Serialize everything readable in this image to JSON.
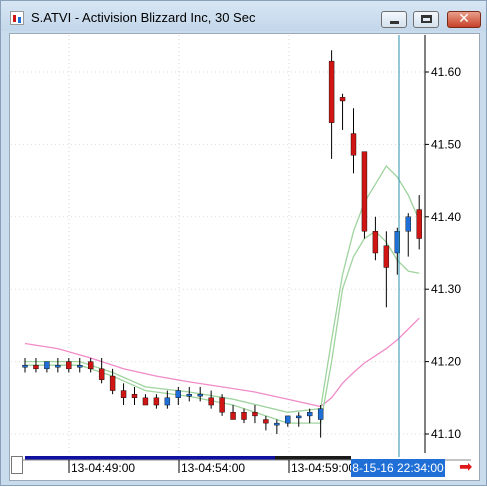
{
  "window": {
    "title": "S.ATVI - Activision Blizzard Inc, 30 Sec",
    "icon": "candlestick-chart-icon",
    "close_glyph": "✕"
  },
  "chart_data": {
    "type": "candlestick",
    "ylim": [
      41.05,
      41.66
    ],
    "y_ticks": [
      "41.60",
      "41.50",
      "41.40",
      "41.30",
      "41.20",
      "41.10"
    ],
    "x_tick_labels": [
      "13-04:49:00",
      "13-04:54:00",
      "13-04:59:00"
    ],
    "cursor_time": "8-15-16 22:34:00",
    "colors": {
      "up": "#1f6fd6",
      "down": "#d01515",
      "ma_fast": "#9fd39f",
      "ma_slow": "#f08cc8",
      "cursor": "#2a8fb0"
    },
    "candles": [
      {
        "o": 41.195,
        "h": 41.205,
        "l": 41.185,
        "c": 41.195
      },
      {
        "o": 41.195,
        "h": 41.205,
        "l": 41.185,
        "c": 41.19
      },
      {
        "o": 41.19,
        "h": 41.2,
        "l": 41.185,
        "c": 41.2
      },
      {
        "o": 41.195,
        "h": 41.205,
        "l": 41.185,
        "c": 41.195
      },
      {
        "o": 41.2,
        "h": 41.205,
        "l": 41.185,
        "c": 41.19
      },
      {
        "o": 41.195,
        "h": 41.205,
        "l": 41.185,
        "c": 41.195
      },
      {
        "o": 41.2,
        "h": 41.205,
        "l": 41.185,
        "c": 41.19
      },
      {
        "o": 41.19,
        "h": 41.205,
        "l": 41.17,
        "c": 41.175
      },
      {
        "o": 41.18,
        "h": 41.19,
        "l": 41.155,
        "c": 41.16
      },
      {
        "o": 41.16,
        "h": 41.17,
        "l": 41.14,
        "c": 41.15
      },
      {
        "o": 41.155,
        "h": 41.165,
        "l": 41.14,
        "c": 41.15
      },
      {
        "o": 41.15,
        "h": 41.155,
        "l": 41.14,
        "c": 41.14
      },
      {
        "o": 41.15,
        "h": 41.155,
        "l": 41.135,
        "c": 41.14
      },
      {
        "o": 41.14,
        "h": 41.16,
        "l": 41.135,
        "c": 41.15
      },
      {
        "o": 41.15,
        "h": 41.165,
        "l": 41.14,
        "c": 41.16
      },
      {
        "o": 41.155,
        "h": 41.165,
        "l": 41.145,
        "c": 41.155
      },
      {
        "o": 41.155,
        "h": 41.165,
        "l": 41.145,
        "c": 41.155
      },
      {
        "o": 41.15,
        "h": 41.16,
        "l": 41.135,
        "c": 41.14
      },
      {
        "o": 41.15,
        "h": 41.155,
        "l": 41.125,
        "c": 41.13
      },
      {
        "o": 41.13,
        "h": 41.14,
        "l": 41.12,
        "c": 41.12
      },
      {
        "o": 41.13,
        "h": 41.135,
        "l": 41.115,
        "c": 41.12
      },
      {
        "o": 41.13,
        "h": 41.14,
        "l": 41.115,
        "c": 41.125
      },
      {
        "o": 41.12,
        "h": 41.125,
        "l": 41.105,
        "c": 41.115
      },
      {
        "o": 41.115,
        "h": 41.12,
        "l": 41.1,
        "c": 41.115
      },
      {
        "o": 41.115,
        "h": 41.125,
        "l": 41.11,
        "c": 41.125
      },
      {
        "o": 41.125,
        "h": 41.13,
        "l": 41.11,
        "c": 41.125
      },
      {
        "o": 41.125,
        "h": 41.135,
        "l": 41.115,
        "c": 41.13
      },
      {
        "o": 41.12,
        "h": 41.14,
        "l": 41.095,
        "c": 41.135
      },
      {
        "o": 41.615,
        "h": 41.63,
        "l": 41.48,
        "c": 41.53
      },
      {
        "o": 41.565,
        "h": 41.57,
        "l": 41.52,
        "c": 41.56
      },
      {
        "o": 41.515,
        "h": 41.55,
        "l": 41.46,
        "c": 41.485
      },
      {
        "o": 41.49,
        "h": 41.49,
        "l": 41.37,
        "c": 41.38
      },
      {
        "o": 41.38,
        "h": 41.4,
        "l": 41.34,
        "c": 41.35
      },
      {
        "o": 41.36,
        "h": 41.38,
        "l": 41.275,
        "c": 41.33
      },
      {
        "o": 41.35,
        "h": 41.385,
        "l": 41.32,
        "c": 41.38
      },
      {
        "o": 41.38,
        "h": 41.405,
        "l": 41.345,
        "c": 41.4
      },
      {
        "o": 41.41,
        "h": 41.43,
        "l": 41.355,
        "c": 41.37
      }
    ],
    "ma_fast_upper": [
      [
        0,
        41.2
      ],
      [
        5,
        41.2
      ],
      [
        8,
        41.185
      ],
      [
        11,
        41.165
      ],
      [
        15,
        41.158
      ],
      [
        19,
        41.148
      ],
      [
        24,
        41.13
      ],
      [
        27,
        41.135
      ],
      [
        28,
        41.23
      ],
      [
        29,
        41.32
      ],
      [
        30,
        41.38
      ],
      [
        31,
        41.42
      ],
      [
        32,
        41.445
      ],
      [
        33,
        41.47
      ],
      [
        34,
        41.455
      ],
      [
        35,
        41.43
      ],
      [
        36,
        41.395
      ]
    ],
    "ma_fast_lower": [
      [
        0,
        41.195
      ],
      [
        5,
        41.195
      ],
      [
        8,
        41.18
      ],
      [
        11,
        41.16
      ],
      [
        15,
        41.152
      ],
      [
        19,
        41.14
      ],
      [
        24,
        41.115
      ],
      [
        27,
        41.115
      ],
      [
        28,
        41.2
      ],
      [
        29,
        41.3
      ],
      [
        30,
        41.345
      ],
      [
        31,
        41.37
      ],
      [
        32,
        41.38
      ],
      [
        33,
        41.365
      ],
      [
        34,
        41.34
      ],
      [
        35,
        41.325
      ],
      [
        36,
        41.322
      ]
    ],
    "ma_slow": [
      [
        0,
        41.225
      ],
      [
        3,
        41.218
      ],
      [
        6,
        41.205
      ],
      [
        9,
        41.19
      ],
      [
        12,
        41.18
      ],
      [
        15,
        41.172
      ],
      [
        18,
        41.165
      ],
      [
        21,
        41.158
      ],
      [
        24,
        41.148
      ],
      [
        27,
        41.138
      ],
      [
        28,
        41.15
      ],
      [
        29,
        41.17
      ],
      [
        30,
        41.185
      ],
      [
        31,
        41.198
      ],
      [
        32,
        41.208
      ],
      [
        33,
        41.218
      ],
      [
        34,
        41.23
      ],
      [
        35,
        41.245
      ],
      [
        36,
        41.26
      ]
    ]
  }
}
